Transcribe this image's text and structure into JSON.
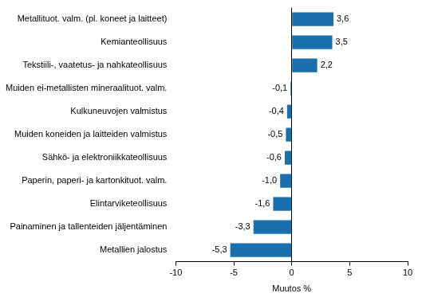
{
  "chart_data": {
    "type": "bar",
    "orientation": "horizontal",
    "categories": [
      "Metallituot. valm. (pl. koneet ja laitteet)",
      "Kemianteollisuus",
      "Tekstiili-, vaatetus- ja nahkateollisuus",
      "Muiden ei-metallisten mineraalituot. valm.",
      "Kulkuneuvojen valmistus",
      "Muiden koneiden ja laitteiden valmistus",
      "Sähkö- ja elektroniikkateollisuus",
      "Paperin, paperi- ja kartonkituot. valm.",
      "Elintarviketeollisuus",
      "Painaminen ja tallenteiden jäljentäminen",
      "Metallien jalostus"
    ],
    "values": [
      3.6,
      3.5,
      2.2,
      -0.1,
      -0.4,
      -0.5,
      -0.6,
      -1.0,
      -1.6,
      -3.3,
      -5.3
    ],
    "value_labels": [
      "3,6",
      "3,5",
      "2,2",
      "-0,1",
      "-0,4",
      "-0,5",
      "-0,6",
      "-1,0",
      "-1,6",
      "-3,3",
      "-5,3"
    ],
    "color": "#1a6fae",
    "x_label": "Muutos %",
    "xlim": [
      -10,
      10
    ],
    "xticks": [
      -10,
      -5,
      0,
      5,
      10
    ],
    "grid": false,
    "data_labels": true
  }
}
